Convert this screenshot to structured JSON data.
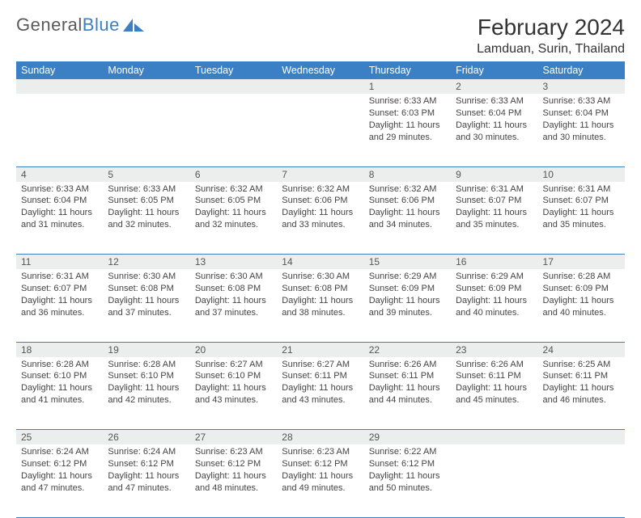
{
  "brand": {
    "name_a": "General",
    "name_b": "Blue"
  },
  "title": "February 2024",
  "location": "Lamduan, Surin, Thailand",
  "colors": {
    "header_bg": "#3b7fc4",
    "header_text": "#ffffff",
    "daynum_bg": "#eceeee",
    "border": "#3b7fc4",
    "text": "#444444"
  },
  "weekdays": [
    "Sunday",
    "Monday",
    "Tuesday",
    "Wednesday",
    "Thursday",
    "Friday",
    "Saturday"
  ],
  "weeks": [
    [
      null,
      null,
      null,
      null,
      {
        "n": "1",
        "sr": "6:33 AM",
        "ss": "6:03 PM",
        "dl": "11 hours and 29 minutes."
      },
      {
        "n": "2",
        "sr": "6:33 AM",
        "ss": "6:04 PM",
        "dl": "11 hours and 30 minutes."
      },
      {
        "n": "3",
        "sr": "6:33 AM",
        "ss": "6:04 PM",
        "dl": "11 hours and 30 minutes."
      }
    ],
    [
      {
        "n": "4",
        "sr": "6:33 AM",
        "ss": "6:04 PM",
        "dl": "11 hours and 31 minutes."
      },
      {
        "n": "5",
        "sr": "6:33 AM",
        "ss": "6:05 PM",
        "dl": "11 hours and 32 minutes."
      },
      {
        "n": "6",
        "sr": "6:32 AM",
        "ss": "6:05 PM",
        "dl": "11 hours and 32 minutes."
      },
      {
        "n": "7",
        "sr": "6:32 AM",
        "ss": "6:06 PM",
        "dl": "11 hours and 33 minutes."
      },
      {
        "n": "8",
        "sr": "6:32 AM",
        "ss": "6:06 PM",
        "dl": "11 hours and 34 minutes."
      },
      {
        "n": "9",
        "sr": "6:31 AM",
        "ss": "6:07 PM",
        "dl": "11 hours and 35 minutes."
      },
      {
        "n": "10",
        "sr": "6:31 AM",
        "ss": "6:07 PM",
        "dl": "11 hours and 35 minutes."
      }
    ],
    [
      {
        "n": "11",
        "sr": "6:31 AM",
        "ss": "6:07 PM",
        "dl": "11 hours and 36 minutes."
      },
      {
        "n": "12",
        "sr": "6:30 AM",
        "ss": "6:08 PM",
        "dl": "11 hours and 37 minutes."
      },
      {
        "n": "13",
        "sr": "6:30 AM",
        "ss": "6:08 PM",
        "dl": "11 hours and 37 minutes."
      },
      {
        "n": "14",
        "sr": "6:30 AM",
        "ss": "6:08 PM",
        "dl": "11 hours and 38 minutes."
      },
      {
        "n": "15",
        "sr": "6:29 AM",
        "ss": "6:09 PM",
        "dl": "11 hours and 39 minutes."
      },
      {
        "n": "16",
        "sr": "6:29 AM",
        "ss": "6:09 PM",
        "dl": "11 hours and 40 minutes."
      },
      {
        "n": "17",
        "sr": "6:28 AM",
        "ss": "6:09 PM",
        "dl": "11 hours and 40 minutes."
      }
    ],
    [
      {
        "n": "18",
        "sr": "6:28 AM",
        "ss": "6:10 PM",
        "dl": "11 hours and 41 minutes."
      },
      {
        "n": "19",
        "sr": "6:28 AM",
        "ss": "6:10 PM",
        "dl": "11 hours and 42 minutes."
      },
      {
        "n": "20",
        "sr": "6:27 AM",
        "ss": "6:10 PM",
        "dl": "11 hours and 43 minutes."
      },
      {
        "n": "21",
        "sr": "6:27 AM",
        "ss": "6:11 PM",
        "dl": "11 hours and 43 minutes."
      },
      {
        "n": "22",
        "sr": "6:26 AM",
        "ss": "6:11 PM",
        "dl": "11 hours and 44 minutes."
      },
      {
        "n": "23",
        "sr": "6:26 AM",
        "ss": "6:11 PM",
        "dl": "11 hours and 45 minutes."
      },
      {
        "n": "24",
        "sr": "6:25 AM",
        "ss": "6:11 PM",
        "dl": "11 hours and 46 minutes."
      }
    ],
    [
      {
        "n": "25",
        "sr": "6:24 AM",
        "ss": "6:12 PM",
        "dl": "11 hours and 47 minutes."
      },
      {
        "n": "26",
        "sr": "6:24 AM",
        "ss": "6:12 PM",
        "dl": "11 hours and 47 minutes."
      },
      {
        "n": "27",
        "sr": "6:23 AM",
        "ss": "6:12 PM",
        "dl": "11 hours and 48 minutes."
      },
      {
        "n": "28",
        "sr": "6:23 AM",
        "ss": "6:12 PM",
        "dl": "11 hours and 49 minutes."
      },
      {
        "n": "29",
        "sr": "6:22 AM",
        "ss": "6:12 PM",
        "dl": "11 hours and 50 minutes."
      },
      null,
      null
    ]
  ],
  "labels": {
    "sunrise": "Sunrise:",
    "sunset": "Sunset:",
    "daylight": "Daylight:"
  }
}
